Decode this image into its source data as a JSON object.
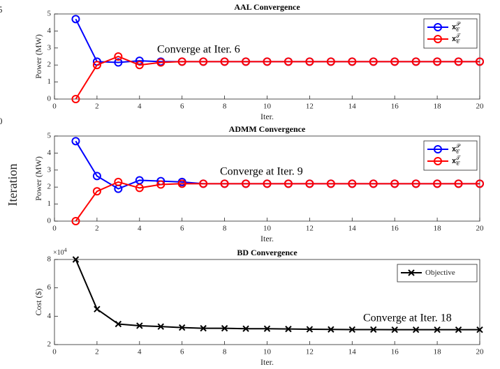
{
  "figure": {
    "ylabel": "Iteration",
    "yticks": [
      5,
      0
    ]
  },
  "chart_data": [
    {
      "type": "line",
      "title": "AAL Convergence",
      "xlabel": "Iter.",
      "ylabel": "Power (MW)",
      "x": [
        1,
        2,
        3,
        4,
        5,
        6,
        7,
        8,
        9,
        10,
        11,
        12,
        13,
        14,
        15,
        16,
        17,
        18,
        19,
        20
      ],
      "series": [
        {
          "name": "𝐱",
          "name_sub": "𝒞",
          "name_sup": "𝒫",
          "color": "#0000ff",
          "marker": "o",
          "values": [
            4.7,
            2.2,
            2.15,
            2.25,
            2.2,
            2.2,
            2.2,
            2.2,
            2.2,
            2.2,
            2.2,
            2.2,
            2.2,
            2.2,
            2.2,
            2.2,
            2.2,
            2.2,
            2.2,
            2.2
          ]
        },
        {
          "name": "𝐱",
          "name_sub": "𝒞",
          "name_sup": "𝒯",
          "color": "#ff0000",
          "marker": "o",
          "values": [
            0,
            2.0,
            2.5,
            2.0,
            2.15,
            2.2,
            2.2,
            2.2,
            2.2,
            2.2,
            2.2,
            2.2,
            2.2,
            2.2,
            2.2,
            2.2,
            2.2,
            2.2,
            2.2,
            2.2
          ]
        }
      ],
      "xlim": [
        0,
        20
      ],
      "ylim": [
        0,
        5
      ],
      "xticks": [
        0,
        2,
        4,
        6,
        8,
        10,
        12,
        14,
        16,
        18,
        20
      ],
      "yticks": [
        0,
        1,
        2,
        3,
        4,
        5
      ],
      "annotation": "Converge at Iter. 6",
      "legend": "upper right"
    },
    {
      "type": "line",
      "title": "ADMM Convergence",
      "xlabel": "Iter.",
      "ylabel": "Power (MW)",
      "x": [
        1,
        2,
        3,
        4,
        5,
        6,
        7,
        8,
        9,
        10,
        11,
        12,
        13,
        14,
        15,
        16,
        17,
        18,
        19,
        20
      ],
      "series": [
        {
          "name": "𝐱",
          "name_sub": "𝒞",
          "name_sup": "𝒫",
          "color": "#0000ff",
          "marker": "o",
          "values": [
            4.7,
            2.65,
            1.9,
            2.4,
            2.35,
            2.3,
            2.2,
            2.2,
            2.2,
            2.2,
            2.2,
            2.2,
            2.2,
            2.2,
            2.2,
            2.2,
            2.2,
            2.2,
            2.2,
            2.2
          ]
        },
        {
          "name": "𝐱",
          "name_sub": "𝒞",
          "name_sup": "𝒯",
          "color": "#ff0000",
          "marker": "o",
          "values": [
            0,
            1.75,
            2.3,
            1.95,
            2.15,
            2.2,
            2.2,
            2.2,
            2.2,
            2.2,
            2.2,
            2.2,
            2.2,
            2.2,
            2.2,
            2.2,
            2.2,
            2.2,
            2.2,
            2.2
          ]
        }
      ],
      "xlim": [
        0,
        20
      ],
      "ylim": [
        0,
        5
      ],
      "xticks": [
        0,
        2,
        4,
        6,
        8,
        10,
        12,
        14,
        16,
        18,
        20
      ],
      "yticks": [
        0,
        1,
        2,
        3,
        4,
        5
      ],
      "annotation": "Converge at Iter. 9",
      "legend": "upper right"
    },
    {
      "type": "line",
      "title": "BD Convergence",
      "xlabel": "Iter.",
      "ylabel": "Cost ($)",
      "y_multiplier": "×10",
      "y_multiplier_exp": "4",
      "x": [
        1,
        2,
        3,
        4,
        5,
        6,
        7,
        8,
        9,
        10,
        11,
        12,
        13,
        14,
        15,
        16,
        17,
        18,
        19,
        20
      ],
      "series": [
        {
          "name": "Objective",
          "color": "#000000",
          "marker": "x",
          "values": [
            8,
            4.5,
            3.45,
            3.33,
            3.27,
            3.2,
            3.15,
            3.15,
            3.12,
            3.12,
            3.1,
            3.08,
            3.07,
            3.06,
            3.06,
            3.05,
            3.05,
            3.05,
            3.05,
            3.05
          ]
        }
      ],
      "xlim": [
        0,
        20
      ],
      "ylim": [
        2,
        8
      ],
      "xticks": [
        0,
        2,
        4,
        6,
        8,
        10,
        12,
        14,
        16,
        18,
        20
      ],
      "yticks": [
        2,
        4,
        6,
        8
      ],
      "annotation": "Converge at Iter. 18",
      "legend": "upper right"
    }
  ]
}
